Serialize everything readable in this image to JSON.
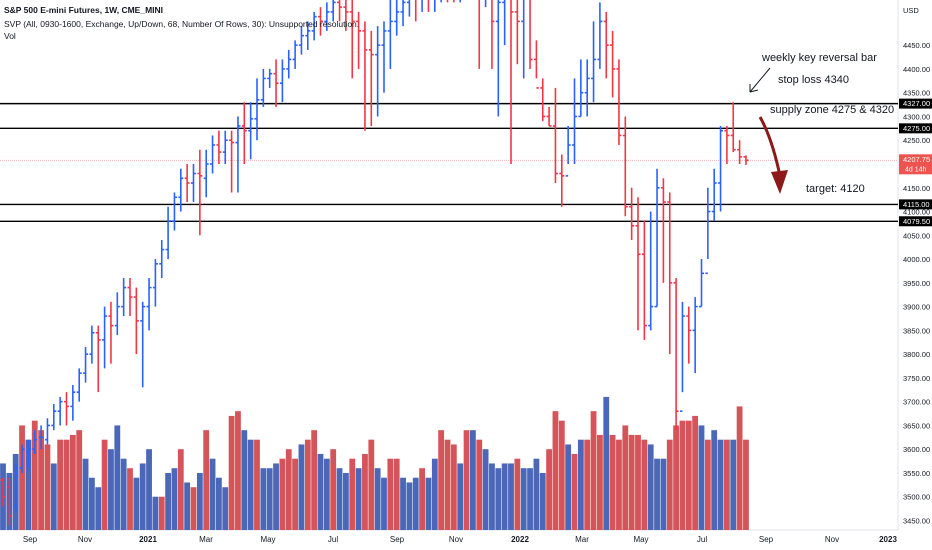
{
  "header": {
    "symbol_line": "S&P 500 E-mini Futures, 1W, CME_MINI",
    "svp_line": "SVP (All, 0930-1600, Exchange, Up/Down, 68, Number Of Rows, 30): Unsupported resolution.",
    "vol_label": "Vol"
  },
  "annotations": {
    "reversal": "weekly key reversal bar",
    "stop_loss": "stop loss 4340",
    "supply_zone": "supply zone 4275 & 4320",
    "target": "target: 4120"
  },
  "price_axis": {
    "currency": "USD",
    "ticks": [
      "4450.00",
      "4400.00",
      "4350.00",
      "4300.00",
      "4250.00",
      "4200.00",
      "4150.00",
      "4100.00",
      "4050.00",
      "4000.00",
      "3950.00",
      "3900.00",
      "3850.00",
      "3800.00",
      "3750.00",
      "3700.00",
      "3650.00",
      "3600.00",
      "3550.00",
      "3500.00",
      "3450.00"
    ],
    "badges": [
      {
        "text": "4327.00",
        "value": 4327,
        "bg": "#000000",
        "fg": "#ffffff"
      },
      {
        "text": "4275.00",
        "value": 4275,
        "bg": "#000000",
        "fg": "#ffffff"
      },
      {
        "text": "4207.75",
        "sub": "4d 14h",
        "value": 4207.75,
        "bg": "#ef5350",
        "fg": "#ffffff"
      },
      {
        "text": "4115.00",
        "value": 4115,
        "bg": "#000000",
        "fg": "#ffffff"
      },
      {
        "text": "4079.50",
        "value": 4079.5,
        "bg": "#000000",
        "fg": "#ffffff"
      }
    ]
  },
  "time_axis": {
    "labels": [
      "Sep",
      "Nov",
      "2021",
      "Mar",
      "May",
      "Jul",
      "Sep",
      "Nov",
      "2022",
      "Mar",
      "May",
      "Jul",
      "Sep",
      "Nov",
      "2023"
    ]
  },
  "colors": {
    "up": "#2962ff",
    "down": "#f23645",
    "vol_up": "#4a67b8",
    "vol_down": "#d5545a",
    "level": "#000000",
    "last_price": "#f7a9ad",
    "arrow": "#8b1a1a"
  },
  "chart_data": {
    "type": "bar",
    "title": "S&P 500 E-mini Futures, 1W, CME_MINI",
    "ylabel": "USD",
    "ylim": [
      3430,
      4545
    ],
    "horizontal_levels": [
      4327,
      4275,
      4115,
      4079.5
    ],
    "last_price": 4207.75,
    "target": 4120,
    "stop_loss": 4340,
    "bars": [
      [
        3535,
        3500,
        3480,
        3540
      ],
      [
        3520,
        3460,
        3440,
        3540
      ],
      [
        3480,
        3560,
        3470,
        3570
      ],
      [
        3560,
        3600,
        3550,
        3610
      ],
      [
        3595,
        3600,
        3560,
        3620
      ],
      [
        3600,
        3620,
        3590,
        3640
      ],
      [
        3625,
        3625,
        3600,
        3650
      ],
      [
        3620,
        3650,
        3610,
        3665
      ],
      [
        3650,
        3680,
        3640,
        3695
      ],
      [
        3680,
        3700,
        3650,
        3710
      ],
      [
        3700,
        3690,
        3650,
        3720
      ],
      [
        3690,
        3720,
        3660,
        3735
      ],
      [
        3720,
        3760,
        3700,
        3770
      ],
      [
        3760,
        3800,
        3740,
        3815
      ],
      [
        3800,
        3845,
        3780,
        3860
      ],
      [
        3845,
        3830,
        3720,
        3860
      ],
      [
        3830,
        3880,
        3770,
        3900
      ],
      [
        3880,
        3860,
        3780,
        3910
      ],
      [
        3860,
        3900,
        3840,
        3930
      ],
      [
        3900,
        3940,
        3880,
        3960
      ],
      [
        3940,
        3920,
        3880,
        3960
      ],
      [
        3920,
        3870,
        3800,
        3940
      ],
      [
        3870,
        3900,
        3730,
        3910
      ],
      [
        3900,
        3940,
        3850,
        3960
      ],
      [
        3940,
        3990,
        3900,
        4000
      ],
      [
        3990,
        4020,
        3960,
        4040
      ],
      [
        4020,
        4080,
        4000,
        4110
      ],
      [
        4080,
        4130,
        4060,
        4140
      ],
      [
        4130,
        4170,
        4100,
        4190
      ],
      [
        4170,
        4160,
        4120,
        4200
      ],
      [
        4160,
        4180,
        4120,
        4200
      ],
      [
        4180,
        4175,
        4050,
        4230
      ],
      [
        4170,
        4200,
        4130,
        4230
      ],
      [
        4200,
        4240,
        4180,
        4260
      ],
      [
        4240,
        4225,
        4200,
        4270
      ],
      [
        4225,
        4250,
        4200,
        4270
      ],
      [
        4250,
        4245,
        4140,
        4270
      ],
      [
        4245,
        4280,
        4140,
        4300
      ],
      [
        4280,
        4270,
        4200,
        4330
      ],
      [
        4270,
        4295,
        4210,
        4330
      ],
      [
        4295,
        4335,
        4250,
        4380
      ],
      [
        4335,
        4380,
        4320,
        4400
      ],
      [
        4380,
        4390,
        4360,
        4400
      ],
      [
        4390,
        4370,
        4320,
        4420
      ],
      [
        4370,
        4400,
        4330,
        4420
      ],
      [
        4400,
        4420,
        4380,
        4440
      ],
      [
        4420,
        4450,
        4400,
        4460
      ],
      [
        4450,
        4470,
        4430,
        4490
      ],
      [
        4470,
        4480,
        4440,
        4500
      ],
      [
        4480,
        4510,
        4460,
        4520
      ],
      [
        4510,
        4500,
        4470,
        4530
      ],
      [
        4500,
        4520,
        4480,
        4540
      ],
      [
        4520,
        4540,
        4500,
        4560
      ],
      [
        4540,
        4530,
        4500,
        4560
      ],
      [
        4530,
        4520,
        4480,
        4560
      ],
      [
        4520,
        4500,
        4380,
        4560
      ],
      [
        4500,
        4480,
        4400,
        4520
      ],
      [
        4480,
        4440,
        4270,
        4500
      ],
      [
        4440,
        4430,
        4280,
        4480
      ],
      [
        4430,
        4450,
        4300,
        4490
      ],
      [
        4450,
        4480,
        4350,
        4500
      ],
      [
        4480,
        4500,
        4400,
        4560
      ],
      [
        4500,
        4520,
        4470,
        4560
      ],
      [
        4520,
        4540,
        4490,
        4560
      ],
      [
        4540,
        4560,
        4510,
        4580
      ],
      [
        4560,
        4550,
        4500,
        4580
      ],
      [
        4550,
        4560,
        4520,
        4580
      ],
      [
        4560,
        4550,
        4520,
        4580
      ],
      [
        4550,
        4560,
        4520,
        4580
      ],
      [
        4560,
        4600,
        4540,
        4620
      ],
      [
        4600,
        4580,
        4540,
        4620
      ],
      [
        4580,
        4560,
        4540,
        4620
      ],
      [
        4560,
        4580,
        4540,
        4620
      ],
      [
        4580,
        4600,
        4560,
        4620
      ],
      [
        4600,
        4640,
        4590,
        4650
      ],
      [
        4640,
        4600,
        4400,
        4650
      ],
      [
        4600,
        4620,
        4530,
        4640
      ],
      [
        4620,
        4500,
        4400,
        4650
      ],
      [
        4500,
        4540,
        4300,
        4560
      ],
      [
        4540,
        4560,
        4450,
        4580
      ],
      [
        4560,
        4520,
        4200,
        4580
      ],
      [
        4520,
        4500,
        4410,
        4600
      ],
      [
        4500,
        4560,
        4380,
        4600
      ],
      [
        4560,
        4420,
        4400,
        4600
      ],
      [
        4420,
        4360,
        4380,
        4460
      ],
      [
        4360,
        4300,
        4290,
        4380
      ],
      [
        4300,
        4280,
        4280,
        4320
      ],
      [
        4280,
        4180,
        4160,
        4360
      ],
      [
        4180,
        4175,
        4110,
        4220
      ],
      [
        4175,
        4240,
        4200,
        4280
      ],
      [
        4240,
        4300,
        4200,
        4380
      ],
      [
        4300,
        4350,
        4300,
        4420
      ],
      [
        4350,
        4380,
        4300,
        4420
      ],
      [
        4380,
        4420,
        4330,
        4500
      ],
      [
        4420,
        4500,
        4400,
        4540
      ],
      [
        4500,
        4450,
        4380,
        4520
      ],
      [
        4450,
        4400,
        4340,
        4480
      ],
      [
        4400,
        4260,
        4240,
        4420
      ],
      [
        4260,
        4110,
        4090,
        4300
      ],
      [
        4110,
        4070,
        4040,
        4150
      ],
      [
        4070,
        4010,
        3850,
        4130
      ],
      [
        4010,
        3860,
        3830,
        4080
      ],
      [
        3860,
        3900,
        3850,
        4100
      ],
      [
        3900,
        4150,
        3900,
        4190
      ],
      [
        4150,
        4120,
        3950,
        4170
      ],
      [
        4120,
        3950,
        3800,
        4140
      ],
      [
        3950,
        3680,
        3640,
        3960
      ],
      [
        3680,
        3880,
        3720,
        3910
      ],
      [
        3880,
        3850,
        3780,
        3900
      ],
      [
        3850,
        3900,
        3760,
        3920
      ],
      [
        3900,
        3970,
        3900,
        4000
      ],
      [
        3970,
        4100,
        4000,
        4150
      ],
      [
        4100,
        4160,
        4080,
        4190
      ],
      [
        4160,
        4270,
        4100,
        4280
      ],
      [
        4270,
        4260,
        4200,
        4280
      ],
      [
        4260,
        4230,
        4225,
        4330
      ],
      [
        4230,
        4215,
        4200,
        4250
      ],
      [
        4215,
        4207.75,
        4198,
        4218
      ]
    ],
    "volume": [
      {
        "v": 3570,
        "up": true
      },
      {
        "v": 3550,
        "up": true
      },
      {
        "v": 3590,
        "up": true
      },
      {
        "v": 3650,
        "up": false
      },
      {
        "v": 3620,
        "up": true
      },
      {
        "v": 3660,
        "up": false
      },
      {
        "v": 3640,
        "up": false
      },
      {
        "v": 3610,
        "up": false
      },
      {
        "v": 3570,
        "up": true
      },
      {
        "v": 3620,
        "up": false
      },
      {
        "v": 3620,
        "up": false
      },
      {
        "v": 3630,
        "up": false
      },
      {
        "v": 3640,
        "up": false
      },
      {
        "v": 3580,
        "up": true
      },
      {
        "v": 3540,
        "up": true
      },
      {
        "v": 3520,
        "up": true
      },
      {
        "v": 3620,
        "up": false
      },
      {
        "v": 3600,
        "up": true
      },
      {
        "v": 3650,
        "up": true
      },
      {
        "v": 3580,
        "up": true
      },
      {
        "v": 3560,
        "up": false
      },
      {
        "v": 3540,
        "up": true
      },
      {
        "v": 3570,
        "up": true
      },
      {
        "v": 3600,
        "up": true
      },
      {
        "v": 3500,
        "up": true
      },
      {
        "v": 3500,
        "up": false
      },
      {
        "v": 3550,
        "up": true
      },
      {
        "v": 3560,
        "up": true
      },
      {
        "v": 3600,
        "up": false
      },
      {
        "v": 3530,
        "up": true
      },
      {
        "v": 3520,
        "up": false
      },
      {
        "v": 3550,
        "up": true
      },
      {
        "v": 3640,
        "up": false
      },
      {
        "v": 3580,
        "up": true
      },
      {
        "v": 3540,
        "up": true
      },
      {
        "v": 3520,
        "up": true
      },
      {
        "v": 3670,
        "up": false
      },
      {
        "v": 3680,
        "up": false
      },
      {
        "v": 3640,
        "up": true
      },
      {
        "v": 3620,
        "up": true
      },
      {
        "v": 3620,
        "up": false
      },
      {
        "v": 3560,
        "up": true
      },
      {
        "v": 3560,
        "up": true
      },
      {
        "v": 3570,
        "up": true
      },
      {
        "v": 3580,
        "up": false
      },
      {
        "v": 3600,
        "up": false
      },
      {
        "v": 3580,
        "up": false
      },
      {
        "v": 3610,
        "up": true
      },
      {
        "v": 3620,
        "up": false
      },
      {
        "v": 3640,
        "up": false
      },
      {
        "v": 3590,
        "up": true
      },
      {
        "v": 3580,
        "up": true
      },
      {
        "v": 3600,
        "up": false
      },
      {
        "v": 3560,
        "up": true
      },
      {
        "v": 3550,
        "up": true
      },
      {
        "v": 3580,
        "up": false
      },
      {
        "v": 3560,
        "up": true
      },
      {
        "v": 3590,
        "up": false
      },
      {
        "v": 3620,
        "up": false
      },
      {
        "v": 3560,
        "up": true
      },
      {
        "v": 3540,
        "up": true
      },
      {
        "v": 3580,
        "up": false
      },
      {
        "v": 3580,
        "up": false
      },
      {
        "v": 3540,
        "up": true
      },
      {
        "v": 3530,
        "up": true
      },
      {
        "v": 3540,
        "up": true
      },
      {
        "v": 3560,
        "up": false
      },
      {
        "v": 3540,
        "up": true
      },
      {
        "v": 3580,
        "up": true
      },
      {
        "v": 3640,
        "up": false
      },
      {
        "v": 3620,
        "up": false
      },
      {
        "v": 3610,
        "up": false
      },
      {
        "v": 3570,
        "up": true
      },
      {
        "v": 3640,
        "up": false
      },
      {
        "v": 3640,
        "up": true
      },
      {
        "v": 3620,
        "up": false
      },
      {
        "v": 3600,
        "up": true
      },
      {
        "v": 3570,
        "up": true
      },
      {
        "v": 3560,
        "up": true
      },
      {
        "v": 3570,
        "up": true
      },
      {
        "v": 3570,
        "up": true
      },
      {
        "v": 3580,
        "up": false
      },
      {
        "v": 3560,
        "up": true
      },
      {
        "v": 3560,
        "up": true
      },
      {
        "v": 3580,
        "up": true
      },
      {
        "v": 3550,
        "up": true
      },
      {
        "v": 3600,
        "up": false
      },
      {
        "v": 3680,
        "up": false
      },
      {
        "v": 3660,
        "up": false
      },
      {
        "v": 3610,
        "up": true
      },
      {
        "v": 3590,
        "up": false
      },
      {
        "v": 3620,
        "up": true
      },
      {
        "v": 3620,
        "up": false
      },
      {
        "v": 3680,
        "up": false
      },
      {
        "v": 3630,
        "up": false
      },
      {
        "v": 3710,
        "up": true
      },
      {
        "v": 3630,
        "up": false
      },
      {
        "v": 3620,
        "up": false
      },
      {
        "v": 3650,
        "up": false
      },
      {
        "v": 3630,
        "up": false
      },
      {
        "v": 3630,
        "up": false
      },
      {
        "v": 3620,
        "up": false
      },
      {
        "v": 3610,
        "up": true
      },
      {
        "v": 3580,
        "up": true
      },
      {
        "v": 3580,
        "up": true
      },
      {
        "v": 3620,
        "up": false
      },
      {
        "v": 3650,
        "up": false
      },
      {
        "v": 3660,
        "up": false
      },
      {
        "v": 3660,
        "up": false
      },
      {
        "v": 3670,
        "up": false
      },
      {
        "v": 3650,
        "up": true
      },
      {
        "v": 3620,
        "up": false
      },
      {
        "v": 3640,
        "up": true
      },
      {
        "v": 3620,
        "up": true
      },
      {
        "v": 3620,
        "up": false
      },
      {
        "v": 3620,
        "up": true
      },
      {
        "v": 3690,
        "up": false
      },
      {
        "v": 3620,
        "up": false
      }
    ]
  }
}
